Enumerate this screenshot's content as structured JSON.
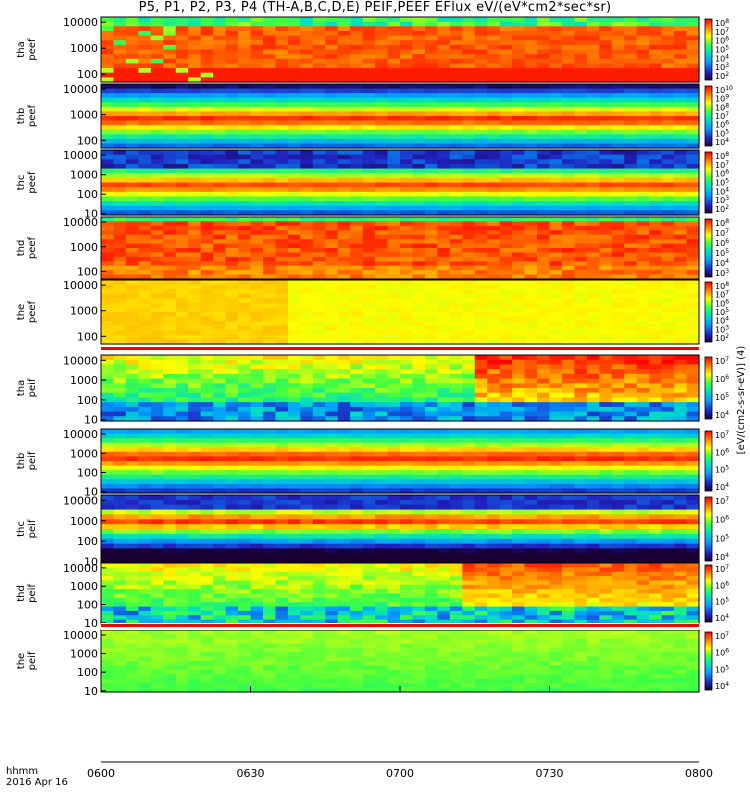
{
  "title": "P5, P1, P2, P3, P4 (TH-A,B,C,D,E) PEIF,PEEF EFlux eV/(eV*cm2*sec*sr)",
  "time_label": "hhmm",
  "date_label": "2016 Apr 16",
  "colorbar_unit_label": "[eV/(cm2-s-sr-eV)] (4)",
  "chart_data": [
    {
      "type": "heatmap",
      "probe": "tha",
      "species": "peef",
      "ylabel": [
        "tha",
        "peef"
      ],
      "yscale": "log",
      "yticks": [
        "10000",
        "1000",
        "100"
      ],
      "cbar_ticks": [
        "10^8",
        "10^7",
        "10^6",
        "10^5",
        "10^4",
        "10^3",
        "10^2"
      ],
      "x_start": "0600",
      "x_end": "0800",
      "dominant_level": "high, with gaps",
      "note": "bursty"
    },
    {
      "type": "heatmap",
      "probe": "thb",
      "species": "peef",
      "ylabel": [
        "thb",
        "peef"
      ],
      "yscale": "log",
      "yticks": [
        "10000",
        "1000",
        "100"
      ],
      "cbar_ticks": [
        "10^10",
        "10^9",
        "10^8",
        "10^7",
        "10^6",
        "10^5",
        "10^4"
      ],
      "x_start": "0600",
      "x_end": "0800",
      "dominant_level": "banded"
    },
    {
      "type": "heatmap",
      "probe": "thc",
      "species": "peef",
      "ylabel": [
        "thc",
        "peef"
      ],
      "yscale": "log",
      "yticks": [
        "10000",
        "1000",
        "100",
        "10"
      ],
      "cbar_ticks": [
        "10^8",
        "10^7",
        "10^6",
        "10^5",
        "10^4",
        "10^3",
        "10^2"
      ],
      "x_start": "0600",
      "x_end": "0800",
      "dominant_level": "banded"
    },
    {
      "type": "heatmap",
      "probe": "thd",
      "species": "peef",
      "ylabel": [
        "thd",
        "peef"
      ],
      "yscale": "log",
      "yticks": [
        "10000",
        "1000",
        "100"
      ],
      "cbar_ticks": [
        "10^8",
        "10^7",
        "10^6",
        "10^5",
        "10^4",
        "10^3"
      ],
      "x_start": "0600",
      "x_end": "0800",
      "dominant_level": "high"
    },
    {
      "type": "heatmap",
      "probe": "the",
      "species": "peef",
      "ylabel": [
        "the",
        "peef"
      ],
      "yscale": "log",
      "yticks": [
        "10000",
        "1000",
        "100"
      ],
      "cbar_ticks": [
        "10^8",
        "10^7",
        "10^6",
        "10^5",
        "10^4",
        "10^3",
        "10^2"
      ],
      "x_start": "0600",
      "x_end": "0800",
      "dominant_level": "uniform"
    },
    {
      "type": "heatmap",
      "probe": "tha",
      "species": "peif",
      "ylabel": [
        "tha",
        "peif"
      ],
      "yscale": "log",
      "yticks": [
        "10000",
        "1000",
        "100",
        "10"
      ],
      "cbar_ticks": [
        "10^7",
        "10^6",
        "10^5",
        "10^4"
      ],
      "x_start": "0600",
      "x_end": "0800",
      "dominant_level": "rising",
      "note": "rising after 0715"
    },
    {
      "type": "heatmap",
      "probe": "thb",
      "species": "peif",
      "ylabel": [
        "thb",
        "peif"
      ],
      "yscale": "log",
      "yticks": [
        "10000",
        "1000",
        "100",
        "10"
      ],
      "cbar_ticks": [
        "10^7",
        "10^6",
        "10^5",
        "10^4"
      ],
      "x_start": "0600",
      "x_end": "0800",
      "dominant_level": "banded"
    },
    {
      "type": "heatmap",
      "probe": "thc",
      "species": "peif",
      "ylabel": [
        "thc",
        "peif"
      ],
      "yscale": "log",
      "yticks": [
        "10000",
        "1000",
        "100",
        "10"
      ],
      "cbar_ticks": [
        "10^7",
        "10^6",
        "10^5",
        "10^4"
      ],
      "x_start": "0600",
      "x_end": "0800",
      "dominant_level": "banded"
    },
    {
      "type": "heatmap",
      "probe": "thd",
      "species": "peif",
      "ylabel": [
        "thd",
        "peif"
      ],
      "yscale": "log",
      "yticks": [
        "10000",
        "1000",
        "100",
        "10"
      ],
      "cbar_ticks": [
        "10^7",
        "10^6",
        "10^5",
        "10^4"
      ],
      "x_start": "0600",
      "x_end": "0800",
      "dominant_level": "rising",
      "note": "rising after 0710"
    },
    {
      "type": "heatmap",
      "probe": "the",
      "species": "peif",
      "ylabel": [
        "the",
        "peif"
      ],
      "yscale": "log",
      "yticks": [
        "10000",
        "1000",
        "100",
        "10"
      ],
      "cbar_ticks": [
        "10^7",
        "10^6",
        "10^5",
        "10^4"
      ],
      "x_start": "0600",
      "x_end": "0800",
      "dominant_level": "uniform"
    }
  ],
  "x_axis": {
    "ticks": [
      "0600",
      "0630",
      "0700",
      "0730",
      "0800"
    ],
    "range": [
      "0600",
      "0800"
    ]
  }
}
